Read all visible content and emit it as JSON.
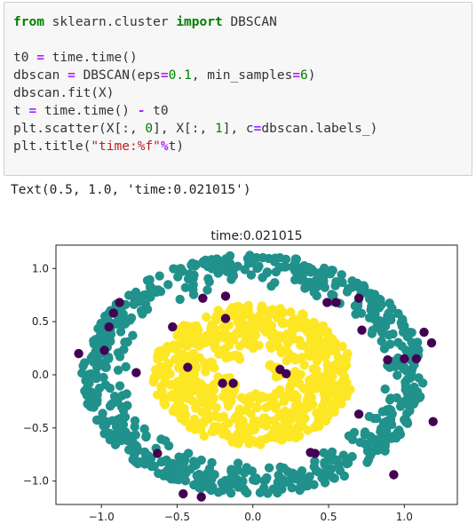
{
  "code_lines": [
    [
      {
        "t": "from",
        "c": "kw"
      },
      {
        "t": " sklearn.cluster ",
        "c": ""
      },
      {
        "t": "import",
        "c": "kw"
      },
      {
        "t": " DBSCAN",
        "c": ""
      }
    ],
    [],
    [
      {
        "t": "t0 ",
        "c": ""
      },
      {
        "t": "=",
        "c": "op"
      },
      {
        "t": " time.time()",
        "c": ""
      }
    ],
    [
      {
        "t": "dbscan ",
        "c": ""
      },
      {
        "t": "=",
        "c": "op"
      },
      {
        "t": " DBSCAN(eps",
        "c": ""
      },
      {
        "t": "=",
        "c": "op"
      },
      {
        "t": "0.1",
        "c": "num"
      },
      {
        "t": ", min_samples",
        "c": ""
      },
      {
        "t": "=",
        "c": "op"
      },
      {
        "t": "6",
        "c": "num"
      },
      {
        "t": ")",
        "c": ""
      }
    ],
    [
      {
        "t": "dbscan.fit(X)",
        "c": ""
      }
    ],
    [
      {
        "t": "t ",
        "c": ""
      },
      {
        "t": "=",
        "c": "op"
      },
      {
        "t": " time.time() ",
        "c": ""
      },
      {
        "t": "-",
        "c": "op"
      },
      {
        "t": " t0",
        "c": ""
      }
    ],
    [
      {
        "t": "plt.scatter(X[:, ",
        "c": ""
      },
      {
        "t": "0",
        "c": "num"
      },
      {
        "t": "], X[:, ",
        "c": ""
      },
      {
        "t": "1",
        "c": "num"
      },
      {
        "t": "], c",
        "c": ""
      },
      {
        "t": "=",
        "c": "op"
      },
      {
        "t": "dbscan.labels_)",
        "c": ""
      }
    ],
    [
      {
        "t": "plt.title(",
        "c": ""
      },
      {
        "t": "\"time:%f\"",
        "c": "str"
      },
      {
        "t": "%",
        "c": "op"
      },
      {
        "t": "t)",
        "c": ""
      }
    ]
  ],
  "output_text": "Text(0.5, 1.0, 'time:0.021015')",
  "chart_data": {
    "type": "scatter",
    "title": "time:0.021015",
    "xlim": [
      -1.3,
      1.35
    ],
    "ylim": [
      -1.22,
      1.22
    ],
    "xticks": [
      -1.0,
      -0.5,
      0.0,
      0.5,
      1.0
    ],
    "xtick_labels": [
      "−1.0",
      "−0.5",
      "0.0",
      "0.5",
      "1.0"
    ],
    "yticks": [
      1.0,
      0.5,
      0.0,
      -0.5,
      -1.0
    ],
    "ytick_labels": [
      "1.0",
      "0.5",
      "0.0",
      "−0.5",
      "−1.0"
    ],
    "series": [
      {
        "label": 0,
        "color": "#21918c",
        "shape": "ring",
        "r_min": 0.83,
        "r_max": 1.13,
        "n": 700
      },
      {
        "label": 1,
        "color": "#fde725",
        "shape": "ring",
        "r_min": 0.12,
        "r_max": 0.66,
        "n": 650
      },
      {
        "label": -1,
        "color": "#440154",
        "points": [
          [
            -1.15,
            0.2
          ],
          [
            -0.98,
            0.23
          ],
          [
            -0.92,
            0.58
          ],
          [
            -0.95,
            0.45
          ],
          [
            -0.88,
            0.68
          ],
          [
            -0.77,
            0.02
          ],
          [
            -0.53,
            0.45
          ],
          [
            -0.33,
            0.72
          ],
          [
            -0.18,
            0.74
          ],
          [
            -0.2,
            -0.08
          ],
          [
            -0.13,
            -0.08
          ],
          [
            -0.63,
            -0.74
          ],
          [
            -0.46,
            -1.12
          ],
          [
            -0.34,
            -1.15
          ],
          [
            -0.18,
            0.53
          ],
          [
            -0.43,
            0.07
          ],
          [
            0.18,
            0.05
          ],
          [
            0.22,
            0.01
          ],
          [
            0.38,
            -0.73
          ],
          [
            0.41,
            -0.74
          ],
          [
            0.72,
            0.42
          ],
          [
            0.7,
            0.72
          ],
          [
            0.7,
            -0.37
          ],
          [
            1.0,
            0.15
          ],
          [
            1.08,
            0.15
          ],
          [
            1.13,
            0.4
          ],
          [
            1.18,
            0.3
          ],
          [
            1.19,
            -0.44
          ],
          [
            0.93,
            -0.94
          ],
          [
            0.55,
            0.68
          ],
          [
            0.49,
            0.68
          ],
          [
            0.89,
            0.14
          ]
        ]
      }
    ]
  }
}
